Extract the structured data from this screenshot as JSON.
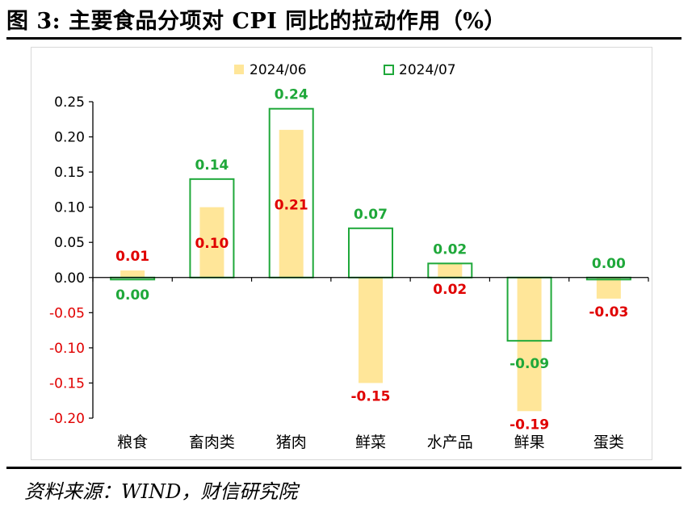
{
  "figure": {
    "title": "图 3:  主要食品分项对 CPI 同比的拉动作用（%）",
    "source": "资料来源：WIND，财信研究院"
  },
  "chart_data": {
    "type": "bar",
    "categories": [
      "粮食",
      "畜肉类",
      "猪肉",
      "鲜菜",
      "水产品",
      "鲜果",
      "蛋类"
    ],
    "series": [
      {
        "name": "2024/06",
        "style": "filled",
        "color": "#FFE699",
        "label_color": "#E00000",
        "values": [
          0.01,
          0.1,
          0.21,
          -0.15,
          0.02,
          -0.19,
          -0.03
        ],
        "labels": [
          "0.01",
          "0.10",
          "0.21",
          "-0.15",
          "0.02",
          "-0.19",
          "-0.03"
        ]
      },
      {
        "name": "2024/07",
        "style": "outline",
        "color": "#1FA83A",
        "label_color": "#1FA83A",
        "values": [
          0.0,
          0.14,
          0.24,
          0.07,
          0.02,
          -0.09,
          0.0
        ],
        "labels": [
          "0.00",
          "0.14",
          "0.24",
          "0.07",
          "0.02",
          "-0.09",
          "0.00"
        ]
      }
    ],
    "ylim": [
      -0.2,
      0.25
    ],
    "yticks": [
      0.25,
      0.2,
      0.15,
      0.1,
      0.05,
      0.0,
      -0.05,
      -0.1,
      -0.15,
      -0.2
    ],
    "ytick_labels": [
      "0.25",
      "0.20",
      "0.15",
      "0.10",
      "0.05",
      "0.00",
      "-0.05",
      "-0.10",
      "-0.15",
      "-0.20"
    ],
    "xlabel": "",
    "ylabel": "",
    "grid": false,
    "legend": "top-center",
    "negative_tick_color": "#E00000"
  }
}
